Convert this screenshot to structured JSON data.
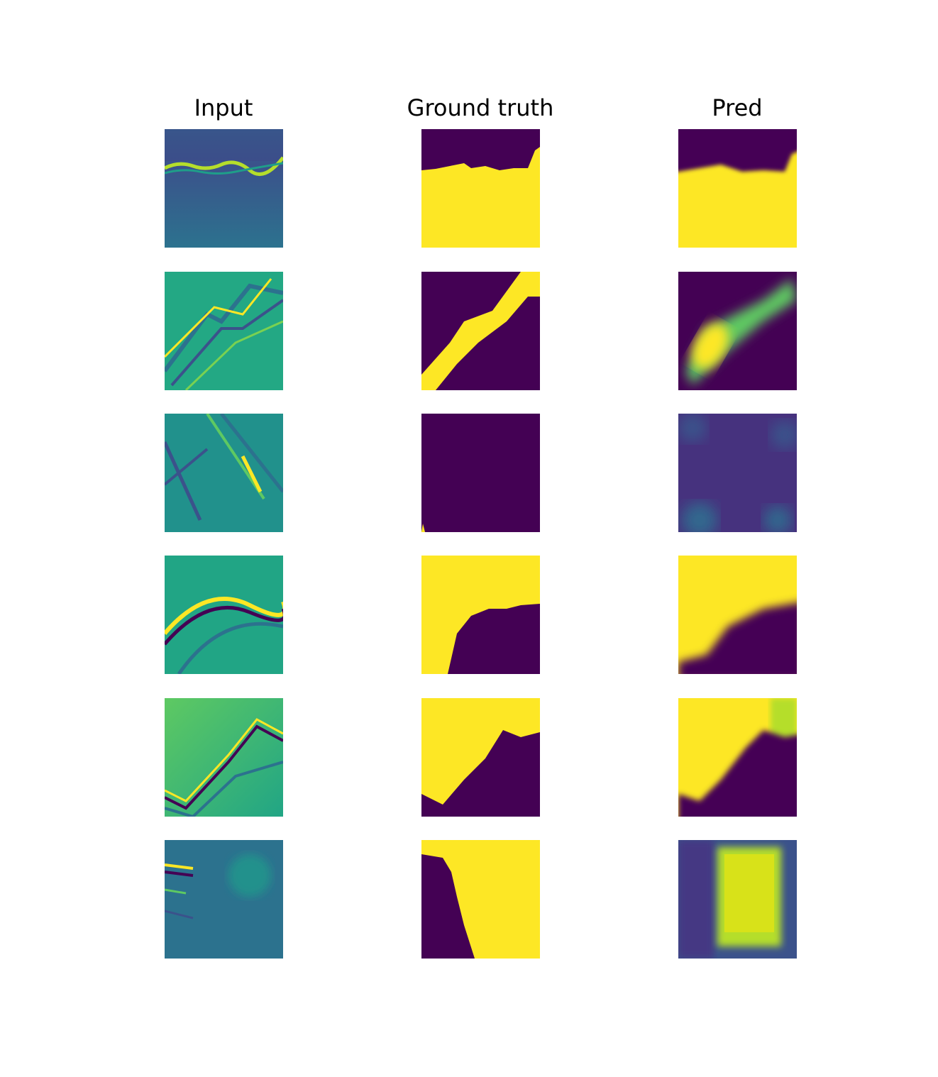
{
  "columns": {
    "input": "Input",
    "ground_truth": "Ground truth",
    "pred": "Pred"
  },
  "colormap": {
    "low": "#440154",
    "mid": "#21918c",
    "high": "#fde725"
  },
  "rows": 6
}
